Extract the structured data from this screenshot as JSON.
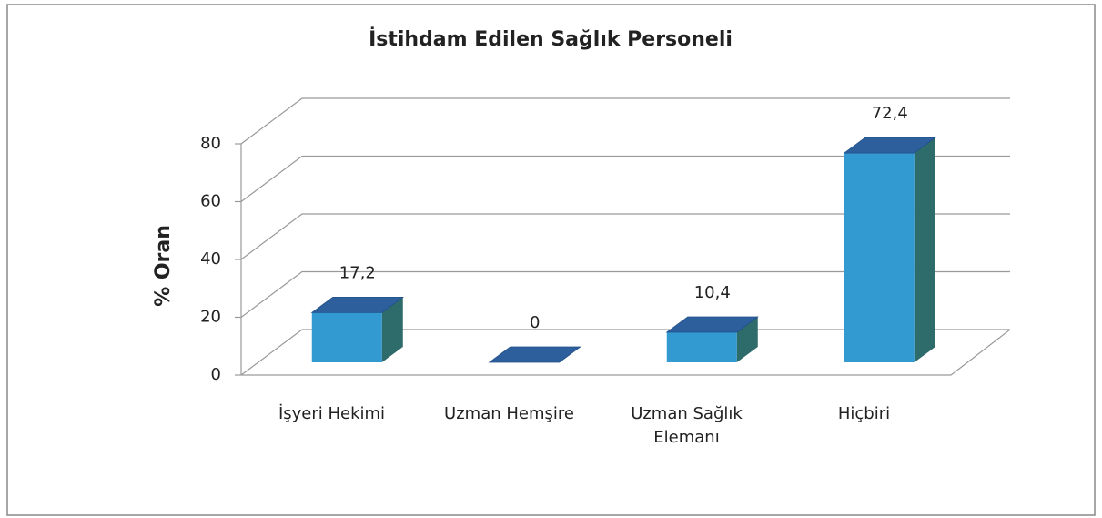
{
  "chart_data": {
    "type": "bar",
    "title": "İstihdam Edilen Sağlık Personeli",
    "ylabel": "% Oran",
    "categories": [
      "İşyeri Hekimi",
      "Uzman Hemşire",
      "Uzman Sağlık Elemanı",
      "Hiçbiri"
    ],
    "values": [
      17.2,
      0,
      10.4,
      72.4
    ],
    "value_labels": [
      "17,2",
      "0",
      "10,4",
      "72,4"
    ],
    "color": "#3399d1",
    "ylim": [
      0,
      80
    ],
    "yticks": [
      0,
      20,
      40,
      60,
      80
    ],
    "grid": true
  }
}
